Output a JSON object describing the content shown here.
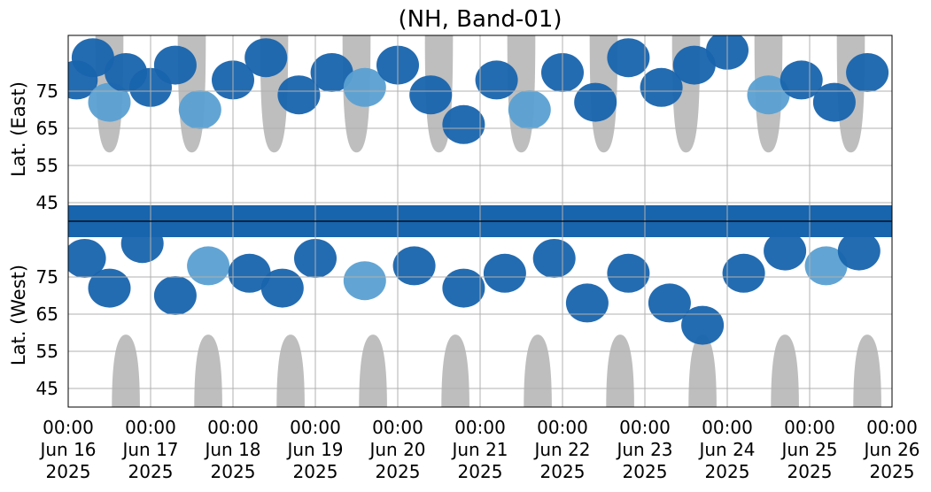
{
  "chart_data": {
    "type": "heatmap",
    "title": "(NH, Band-01)",
    "ylabel_east": "Lat. (East)",
    "ylabel_west": "Lat. (West)",
    "x_tick_labels": [
      {
        "time": "00:00",
        "day": "Jun 16",
        "year": "2025"
      },
      {
        "time": "00:00",
        "day": "Jun 17",
        "year": "2025"
      },
      {
        "time": "00:00",
        "day": "Jun 18",
        "year": "2025"
      },
      {
        "time": "00:00",
        "day": "Jun 19",
        "year": "2025"
      },
      {
        "time": "00:00",
        "day": "Jun 20",
        "year": "2025"
      },
      {
        "time": "00:00",
        "day": "Jun 21",
        "year": "2025"
      },
      {
        "time": "00:00",
        "day": "Jun 22",
        "year": "2025"
      },
      {
        "time": "00:00",
        "day": "Jun 23",
        "year": "2025"
      },
      {
        "time": "00:00",
        "day": "Jun 24",
        "year": "2025"
      },
      {
        "time": "00:00",
        "day": "Jun 25",
        "year": "2025"
      },
      {
        "time": "00:00",
        "day": "Jun 26",
        "year": "2025"
      }
    ],
    "xlim": [
      "2025-06-16 00:00",
      "2025-06-26 00:00"
    ],
    "y_ticks_east": [
      45,
      55,
      65,
      75
    ],
    "y_ticks_west": [
      75,
      65,
      55,
      45
    ],
    "ylim_east": [
      40,
      90
    ],
    "ylim_west": [
      90,
      40
    ],
    "grid": true,
    "colors": {
      "strong": "#1864ad",
      "weak": "#5aa0d2",
      "daylight": "#bebebe",
      "grid": "#b0b0b0",
      "divider": "#000000"
    },
    "daylight_regions": {
      "east_peak_days": [
        "2025-06-16 12:00",
        "2025-06-17 12:00",
        "2025-06-18 12:00",
        "2025-06-19 12:00",
        "2025-06-20 12:00",
        "2025-06-21 12:00",
        "2025-06-22 12:00",
        "2025-06-23 12:00",
        "2025-06-24 12:00",
        "2025-06-25 12:00"
      ],
      "west_peak_days": [
        "2025-06-16 18:00",
        "2025-06-17 18:00",
        "2025-06-18 18:00",
        "2025-06-19 18:00",
        "2025-06-20 18:00",
        "2025-06-21 18:00",
        "2025-06-22 18:00",
        "2025-06-23 18:00",
        "2025-06-24 18:00",
        "2025-06-25 18:00"
      ],
      "min_latitude": 58
    },
    "activity_cells": [
      {
        "day": 0.1,
        "lat_east": 78,
        "level": "strong"
      },
      {
        "day": 0.3,
        "lat_east": 84,
        "level": "strong"
      },
      {
        "day": 0.5,
        "lat_east": 72,
        "level": "weak"
      },
      {
        "day": 0.7,
        "lat_east": 80,
        "level": "strong"
      },
      {
        "day": 1.0,
        "lat_east": 76,
        "level": "strong"
      },
      {
        "day": 1.3,
        "lat_east": 82,
        "level": "strong"
      },
      {
        "day": 1.6,
        "lat_east": 70,
        "level": "weak"
      },
      {
        "day": 2.0,
        "lat_east": 78,
        "level": "strong"
      },
      {
        "day": 2.4,
        "lat_east": 84,
        "level": "strong"
      },
      {
        "day": 2.8,
        "lat_east": 74,
        "level": "strong"
      },
      {
        "day": 3.2,
        "lat_east": 80,
        "level": "strong"
      },
      {
        "day": 3.6,
        "lat_east": 76,
        "level": "weak"
      },
      {
        "day": 4.0,
        "lat_east": 82,
        "level": "strong"
      },
      {
        "day": 4.4,
        "lat_east": 74,
        "level": "strong"
      },
      {
        "day": 4.8,
        "lat_east": 66,
        "level": "strong"
      },
      {
        "day": 5.2,
        "lat_east": 78,
        "level": "strong"
      },
      {
        "day": 5.6,
        "lat_east": 70,
        "level": "weak"
      },
      {
        "day": 6.0,
        "lat_east": 80,
        "level": "strong"
      },
      {
        "day": 6.4,
        "lat_east": 72,
        "level": "strong"
      },
      {
        "day": 6.8,
        "lat_east": 84,
        "level": "strong"
      },
      {
        "day": 7.2,
        "lat_east": 76,
        "level": "strong"
      },
      {
        "day": 7.6,
        "lat_east": 82,
        "level": "strong"
      },
      {
        "day": 8.0,
        "lat_east": 86,
        "level": "strong"
      },
      {
        "day": 8.5,
        "lat_east": 74,
        "level": "weak"
      },
      {
        "day": 8.9,
        "lat_east": 78,
        "level": "strong"
      },
      {
        "day": 9.3,
        "lat_east": 72,
        "level": "strong"
      },
      {
        "day": 9.7,
        "lat_east": 80,
        "level": "strong"
      },
      {
        "day": 0.2,
        "lat_west": 80,
        "level": "strong"
      },
      {
        "day": 0.5,
        "lat_west": 72,
        "level": "strong"
      },
      {
        "day": 0.9,
        "lat_west": 84,
        "level": "strong"
      },
      {
        "day": 1.3,
        "lat_west": 70,
        "level": "strong"
      },
      {
        "day": 1.7,
        "lat_west": 78,
        "level": "weak"
      },
      {
        "day": 2.2,
        "lat_west": 76,
        "level": "strong"
      },
      {
        "day": 2.6,
        "lat_west": 72,
        "level": "strong"
      },
      {
        "day": 3.0,
        "lat_west": 80,
        "level": "strong"
      },
      {
        "day": 3.6,
        "lat_west": 74,
        "level": "weak"
      },
      {
        "day": 4.2,
        "lat_west": 78,
        "level": "strong"
      },
      {
        "day": 4.8,
        "lat_west": 72,
        "level": "strong"
      },
      {
        "day": 5.3,
        "lat_west": 76,
        "level": "strong"
      },
      {
        "day": 5.9,
        "lat_west": 80,
        "level": "strong"
      },
      {
        "day": 6.3,
        "lat_west": 68,
        "level": "strong"
      },
      {
        "day": 6.8,
        "lat_west": 76,
        "level": "strong"
      },
      {
        "day": 7.3,
        "lat_west": 68,
        "level": "strong"
      },
      {
        "day": 7.7,
        "lat_west": 62,
        "level": "strong"
      },
      {
        "day": 8.2,
        "lat_west": 76,
        "level": "strong"
      },
      {
        "day": 8.7,
        "lat_west": 82,
        "level": "strong"
      },
      {
        "day": 9.2,
        "lat_west": 78,
        "level": "weak"
      },
      {
        "day": 9.6,
        "lat_west": 82,
        "level": "strong"
      }
    ]
  }
}
